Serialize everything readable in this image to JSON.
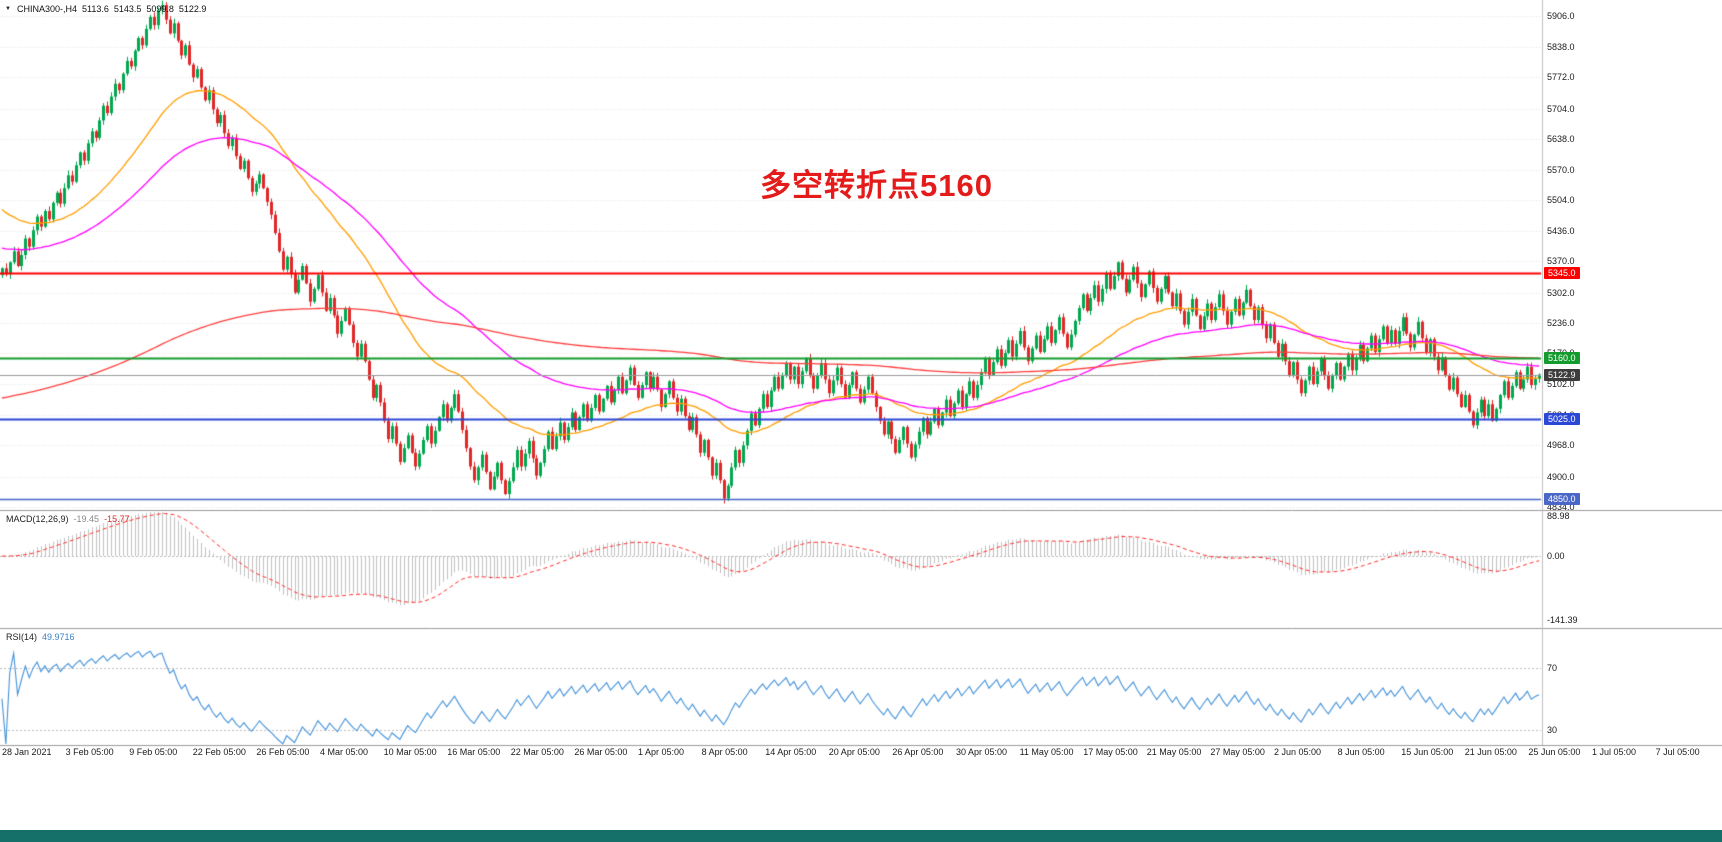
{
  "symbol_bar": {
    "symbol": "CHINA300-,H4",
    "open": "5113.6",
    "high": "5143.5",
    "low": "5099.8",
    "close": "5122.9"
  },
  "annotation": {
    "text": "多空转折点5160",
    "color": "#e41b1b"
  },
  "chart_data": {
    "type": "candlestick",
    "title": "CHINA300-,H4",
    "timeframe_bars_shown": "28 Jan 2021 - 7 Jul 2021",
    "colors": {
      "up": "#00a84f",
      "down": "#e02828",
      "grid": "#e4e4e4",
      "separator": "#9b9b9b",
      "axis_line": "#c0c0c0"
    },
    "y_axis": {
      "top_value": 5941,
      "bottom_value": 4827,
      "labels": [
        "5906.0",
        "5838.0",
        "5772.0",
        "5704.0",
        "5638.0",
        "5570.0",
        "5504.0",
        "5436.0",
        "5370.0",
        "5302.0",
        "5236.0",
        "5170.0",
        "5102.0",
        "5034.0",
        "4968.0",
        "4900.0",
        "4834.0"
      ]
    },
    "x_tick_labels": [
      "28 Jan 2021",
      "3 Feb 05:00",
      "9 Feb 05:00",
      "22 Feb 05:00",
      "26 Feb 05:00",
      "4 Mar 05:00",
      "10 Mar 05:00",
      "16 Mar 05:00",
      "22 Mar 05:00",
      "26 Mar 05:00",
      "1 Apr 05:00",
      "8 Apr 05:00",
      "14 Apr 05:00",
      "20 Apr 05:00",
      "26 Apr 05:00",
      "30 Apr 05:00",
      "11 May 05:00",
      "17 May 05:00",
      "21 May 05:00",
      "27 May 05:00",
      "2 Jun 05:00",
      "8 Jun 05:00",
      "15 Jun 05:00",
      "21 Jun 05:00",
      "25 Jun 05:00",
      "1 Jul 05:00",
      "7 Jul 05:00"
    ],
    "levels": [
      {
        "value": 5345.0,
        "label": "5345.0",
        "color": "#fe0000",
        "width": 2
      },
      {
        "value": 5160.0,
        "label": "5160.0",
        "color": "#149b2e",
        "width": 2
      },
      {
        "value": 5122.9,
        "label": "5122.9",
        "color": "#9a9a9a",
        "width": 1,
        "tag_bg": "#3d3d3d"
      },
      {
        "value": 5025.0,
        "label": "5025.0",
        "color": "#2b47d6",
        "width": 2
      },
      {
        "value": 4850.0,
        "label": "4850.0",
        "color": "#4a66c8",
        "width": 1.5
      }
    ],
    "moving_averages": [
      {
        "name": "ma-fast-orange",
        "color": "#ff9e00",
        "period": 40,
        "start": 5490
      },
      {
        "name": "ma-mid-magenta",
        "color": "#ff00ff",
        "period": 80,
        "start": 5400
      },
      {
        "name": "ma-slow-red",
        "color": "#ff4040",
        "period": 350,
        "start": 5070
      }
    ],
    "first_open": 5340,
    "closes": [
      5355,
      5342,
      5368,
      5392,
      5360,
      5384,
      5420,
      5402,
      5438,
      5468,
      5446,
      5480,
      5462,
      5498,
      5520,
      5496,
      5530,
      5558,
      5544,
      5580,
      5608,
      5590,
      5628,
      5654,
      5640,
      5678,
      5710,
      5694,
      5730,
      5758,
      5744,
      5780,
      5808,
      5796,
      5830,
      5858,
      5842,
      5878,
      5904,
      5886,
      5918,
      5930,
      5898,
      5868,
      5890,
      5852,
      5820,
      5842,
      5800,
      5772,
      5790,
      5750,
      5722,
      5744,
      5702,
      5672,
      5690,
      5650,
      5622,
      5640,
      5600,
      5572,
      5590,
      5552,
      5522,
      5540,
      5560,
      5530,
      5500,
      5472,
      5432,
      5392,
      5352,
      5380,
      5342,
      5302,
      5330,
      5360,
      5322,
      5282,
      5310,
      5340,
      5302,
      5262,
      5290,
      5252,
      5212,
      5240,
      5268,
      5232,
      5192,
      5162,
      5190,
      5152,
      5112,
      5072,
      5100,
      5062,
      5022,
      4982,
      5010,
      4972,
      4932,
      4962,
      4990,
      4952,
      4922,
      4950,
      4980,
      5010,
      4972,
      5000,
      5030,
      5058,
      5022,
      5050,
      5080,
      5042,
      5002,
      4962,
      4922,
      4892,
      4920,
      4948,
      4910,
      4872,
      4900,
      4930,
      4892,
      4862,
      4890,
      4920,
      4958,
      4922,
      4950,
      4978,
      4940,
      4902,
      4930,
      4960,
      4998,
      4960,
      4988,
      5018,
      4980,
      5008,
      5040,
      5002,
      5030,
      5058,
      5022,
      5050,
      5078,
      5042,
      5070,
      5098,
      5062,
      5090,
      5118,
      5082,
      5110,
      5138,
      5100,
      5072,
      5100,
      5128,
      5092,
      5118,
      5090,
      5052,
      5080,
      5108,
      5072,
      5042,
      5070,
      5032,
      5002,
      5030,
      4992,
      4952,
      4980,
      4942,
      4902,
      4930,
      4892,
      4852,
      4880,
      4920,
      4958,
      4930,
      4968,
      5000,
      5038,
      5012,
      5048,
      5080,
      5052,
      5088,
      5118,
      5092,
      5120,
      5148,
      5112,
      5140,
      5102,
      5130,
      5158,
      5122,
      5092,
      5120,
      5148,
      5112,
      5082,
      5110,
      5138,
      5102,
      5072,
      5100,
      5128,
      5092,
      5062,
      5090,
      5118,
      5082,
      5052,
      5022,
      4992,
      5020,
      4982,
      4952,
      4980,
      5008,
      4972,
      4942,
      4970,
      4998,
      5028,
      4992,
      5020,
      5048,
      5012,
      5040,
      5068,
      5032,
      5060,
      5088,
      5052,
      5080,
      5108,
      5072,
      5100,
      5128,
      5158,
      5122,
      5150,
      5178,
      5142,
      5170,
      5198,
      5162,
      5190,
      5218,
      5182,
      5152,
      5180,
      5208,
      5172,
      5200,
      5228,
      5192,
      5220,
      5248,
      5212,
      5182,
      5210,
      5240,
      5268,
      5298,
      5262,
      5290,
      5318,
      5282,
      5310,
      5344,
      5310,
      5338,
      5368,
      5332,
      5302,
      5330,
      5358,
      5322,
      5292,
      5320,
      5348,
      5312,
      5282,
      5310,
      5338,
      5302,
      5272,
      5300,
      5262,
      5232,
      5260,
      5288,
      5252,
      5222,
      5250,
      5278,
      5242,
      5270,
      5298,
      5262,
      5232,
      5260,
      5288,
      5252,
      5280,
      5308,
      5272,
      5242,
      5270,
      5232,
      5202,
      5232,
      5192,
      5162,
      5190,
      5152,
      5122,
      5150,
      5112,
      5082,
      5110,
      5140,
      5102,
      5130,
      5158,
      5122,
      5092,
      5120,
      5148,
      5112,
      5140,
      5168,
      5132,
      5160,
      5188,
      5152,
      5180,
      5208,
      5172,
      5200,
      5228,
      5192,
      5220,
      5190,
      5218,
      5248,
      5212,
      5182,
      5210,
      5238,
      5202,
      5172,
      5200,
      5162,
      5132,
      5160,
      5120,
      5090,
      5116,
      5080,
      5052,
      5078,
      5042,
      5012,
      5040,
      5068,
      5032,
      5058,
      5022,
      5048,
      5078,
      5108,
      5072,
      5098,
      5128,
      5092,
      5112,
      5140,
      5100,
      5113.6,
      5122.9
    ],
    "macd": {
      "label": "MACD(12,26,9)",
      "value_macd": "-19.45",
      "value_signal": "-15.77",
      "params": [
        12,
        26,
        9
      ],
      "scale": [
        100,
        -160
      ],
      "axis_labels": [
        {
          "text": "88.98",
          "value": 88.98
        },
        {
          "text": "0.00",
          "value": 0
        },
        {
          "text": "-141.39",
          "value": -141.39
        }
      ],
      "histogram_color": "#c2c2c2",
      "signal_color": "#ff2d2d"
    },
    "rsi": {
      "label": "RSI(14)",
      "value": "49.9716",
      "period": 14,
      "scale": [
        95,
        20
      ],
      "levels": [
        70,
        30
      ],
      "axis_labels": [
        {
          "text": "70",
          "value": 70
        },
        {
          "text": "30",
          "value": 30
        }
      ],
      "color": "#4593d9"
    }
  }
}
